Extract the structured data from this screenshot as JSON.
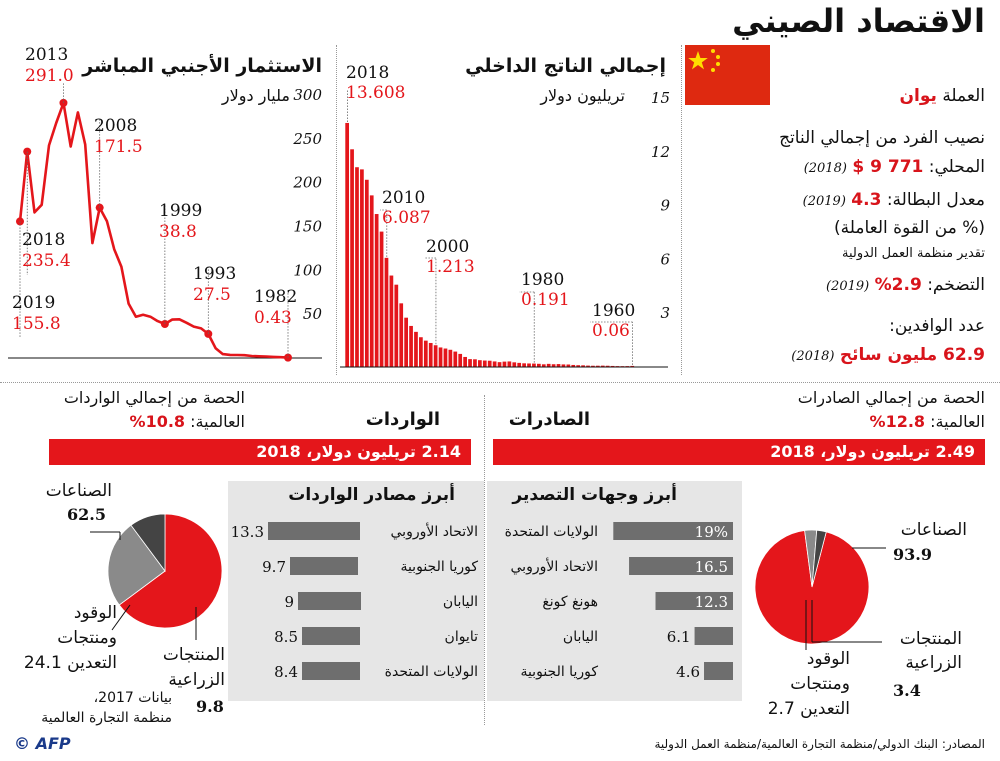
{
  "title": "الاقتصاد الصيني",
  "currency": {
    "label": "العملة",
    "value": "يوان"
  },
  "gdp_pc": {
    "line1": "نصيب الفرد من إجمالي الناتج",
    "line2": "المحلي:",
    "value": "771 9 $",
    "year": "(2018)"
  },
  "unemp": {
    "label": "معدل البطالة:",
    "value": "4.3",
    "year": "(2019)",
    "unit": "(% من القوة العاملة)",
    "note": "تقدير منظمة العمل الدولية"
  },
  "inflation": {
    "label": "التضخم:",
    "value": "2.9%",
    "year": "(2019)"
  },
  "tourists": {
    "label": "عدد الوافدين:",
    "value": "62.9 مليون سائح",
    "year": "(2018)"
  },
  "gdp_chart": {
    "title": "إجمالي الناتج الداخلي",
    "unit": "تريليون دولار",
    "ticks": [
      "15",
      "12",
      "9",
      "6",
      "3"
    ]
  },
  "fdi_chart": {
    "title": "الاستثمار الأجنبي المباشر",
    "unit": "مليار دولار",
    "ticks": [
      "300",
      "250",
      "200",
      "150",
      "100",
      "50"
    ]
  },
  "exports": {
    "title": "الصادرات",
    "share_line1": "الحصة من إجمالي الصادرات",
    "share_line2": "العالمية:",
    "share_value": "12.8%",
    "banner": "2.49 تريليون دولار، 2018"
  },
  "imports": {
    "title": "الواردات",
    "share_line1": "الحصة من إجمالي الواردات",
    "share_line2": "العالمية:",
    "share_value": "10.8%",
    "banner": "2.14 تريليون دولار، 2018"
  },
  "dest_title": "أبرز وجهات التصدير",
  "src_title": "أبرز مصادر الواردات",
  "export_pie": {
    "manufactures_label": "الصناعات",
    "manufactures_value": "93.9",
    "agri_label1": "المنتجات",
    "agri_label2": "الزراعية",
    "agri_value": "3.4",
    "fuel_label1": "الوقود",
    "fuel_label2": "ومنتجات",
    "fuel_label3": "التعدين 2.7"
  },
  "import_pie": {
    "manufactures_label": "الصناعات",
    "manufactures_value": "62.5",
    "fuel_label1": "الوقود",
    "fuel_label2": "ومنتجات",
    "fuel_label3": "التعدين 24.1",
    "agri_label1": "المنتجات",
    "agri_label2": "الزراعية",
    "agri_value": "9.8",
    "note1": "بيانات 2017،",
    "note2": "منظمة التجارة العالمية"
  },
  "sources": "المصادر: البنك الدولي/منظمة التجارة العالمية/منظمة العمل الدولية",
  "credit": "© AFP",
  "colors": {
    "accent": "#e4161b",
    "bar": "#6e6e6e",
    "grey_box": "#e6e6e6"
  },
  "chart_data": [
    {
      "type": "bar",
      "title": "إجمالي الناتج الداخلي",
      "ylabel": "تريليون دولار",
      "ylim": [
        0,
        15
      ],
      "x": [
        1960,
        1961,
        1962,
        1963,
        1964,
        1965,
        1966,
        1967,
        1968,
        1969,
        1970,
        1971,
        1972,
        1973,
        1974,
        1975,
        1976,
        1977,
        1978,
        1979,
        1980,
        1981,
        1982,
        1983,
        1984,
        1985,
        1986,
        1987,
        1988,
        1989,
        1990,
        1991,
        1992,
        1993,
        1994,
        1995,
        1996,
        1997,
        1998,
        1999,
        2000,
        2001,
        2002,
        2003,
        2004,
        2005,
        2006,
        2007,
        2008,
        2009,
        2010,
        2011,
        2012,
        2013,
        2014,
        2015,
        2016,
        2017,
        2018
      ],
      "values": [
        0.06,
        0.05,
        0.047,
        0.05,
        0.059,
        0.07,
        0.076,
        0.072,
        0.07,
        0.079,
        0.093,
        0.1,
        0.114,
        0.139,
        0.144,
        0.163,
        0.154,
        0.175,
        0.15,
        0.178,
        0.191,
        0.196,
        0.205,
        0.23,
        0.26,
        0.31,
        0.3,
        0.27,
        0.31,
        0.35,
        0.36,
        0.38,
        0.43,
        0.44,
        0.56,
        0.73,
        0.86,
        0.96,
        1.03,
        1.09,
        1.213,
        1.34,
        1.47,
        1.66,
        1.96,
        2.29,
        2.75,
        3.55,
        4.59,
        5.1,
        6.087,
        7.55,
        8.53,
        9.57,
        10.44,
        11.02,
        11.14,
        12.14,
        13.608
      ],
      "annotations": [
        {
          "x": 2018,
          "label": "2018",
          "value": "13.608"
        },
        {
          "x": 2010,
          "label": "2010",
          "value": "6.087"
        },
        {
          "x": 2000,
          "label": "2000",
          "value": "1.213"
        },
        {
          "x": 1980,
          "label": "1980",
          "value": "0.191"
        },
        {
          "x": 1960,
          "label": "1960",
          "value": "0.06"
        }
      ]
    },
    {
      "type": "line",
      "title": "الاستثمار الأجنبي المباشر",
      "ylabel": "مليار دولار",
      "ylim": [
        0,
        300
      ],
      "x": [
        1982,
        1983,
        1984,
        1985,
        1986,
        1987,
        1988,
        1989,
        1990,
        1991,
        1992,
        1993,
        1994,
        1995,
        1996,
        1997,
        1998,
        1999,
        2000,
        2001,
        2002,
        2003,
        2004,
        2005,
        2006,
        2007,
        2008,
        2009,
        2010,
        2011,
        2012,
        2013,
        2014,
        2015,
        2016,
        2017,
        2018,
        2019
      ],
      "values": [
        0.43,
        0.9,
        1.3,
        1.7,
        1.9,
        2.3,
        3.2,
        3.4,
        3.5,
        4.4,
        11.2,
        27.5,
        33.8,
        35.8,
        40.2,
        44.2,
        43.8,
        38.8,
        42.1,
        47.1,
        49.3,
        47.1,
        62.1,
        104.1,
        124.1,
        156.2,
        171.5,
        131.1,
        243.7,
        280.1,
        241.2,
        291.0,
        268.1,
        242.5,
        174.7,
        166.1,
        235.4,
        155.8
      ],
      "annotations": [
        {
          "x": 2013,
          "label": "2013",
          "value": "291.0"
        },
        {
          "x": 2008,
          "label": "2008",
          "value": "171.5"
        },
        {
          "x": 2018,
          "label": "2018",
          "value": "235.4"
        },
        {
          "x": 1999,
          "label": "1999",
          "value": "38.8"
        },
        {
          "x": 1993,
          "label": "1993",
          "value": "27.5"
        },
        {
          "x": 2019,
          "label": "2019",
          "value": "155.8"
        },
        {
          "x": 1982,
          "label": "1982",
          "value": "0.43"
        }
      ]
    },
    {
      "type": "bar",
      "title": "أبرز وجهات التصدير",
      "categories": [
        "الولايات المتحدة",
        "الاتحاد الأوروبي",
        "هونغ كونغ",
        "اليابان",
        "كوريا الجنوبية"
      ],
      "values": [
        19,
        16.5,
        12.3,
        6.1,
        4.6
      ],
      "labels": [
        "19%",
        "16.5",
        "12.3",
        "6.1",
        "4.6"
      ]
    },
    {
      "type": "bar",
      "title": "أبرز مصادر الواردات",
      "categories": [
        "الاتحاد الأوروبي",
        "كوريا الجنوبية",
        "اليابان",
        "تايوان",
        "الولايات المتحدة"
      ],
      "values": [
        13.3,
        9.7,
        9,
        8.5,
        8.4
      ],
      "labels": [
        "13.3",
        "9.7",
        "9",
        "8.5",
        "8.4"
      ]
    },
    {
      "type": "pie",
      "title": "الصادرات",
      "categories": [
        "الصناعات",
        "المنتجات الزراعية",
        "الوقود ومنتجات التعدين"
      ],
      "values": [
        93.9,
        3.4,
        2.7
      ]
    },
    {
      "type": "pie",
      "title": "الواردات",
      "categories": [
        "الصناعات",
        "الوقود ومنتجات التعدين",
        "المنتجات الزراعية"
      ],
      "values": [
        62.5,
        24.1,
        9.8
      ]
    }
  ]
}
